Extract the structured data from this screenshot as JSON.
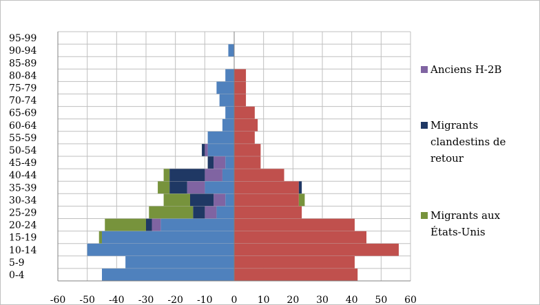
{
  "chart_data": {
    "type": "bar",
    "orientation": "horizontal",
    "stacked": true,
    "title": "",
    "xlabel": "",
    "ylabel": "",
    "xlim": [
      -60,
      60
    ],
    "x_ticks": [
      -60,
      -50,
      -40,
      -30,
      -20,
      -10,
      0,
      10,
      20,
      30,
      40,
      50,
      60
    ],
    "grid": true,
    "legend_position": "right",
    "categories": [
      "0-4",
      "5-9",
      "10-14",
      "15-19",
      "20-24",
      "25-29",
      "30-34",
      "35-39",
      "40-44",
      "45-49",
      "50-54",
      "55-59",
      "60-64",
      "65-69",
      "70-74",
      "75-79",
      "80-84",
      "85-89",
      "90-94",
      "95-99"
    ],
    "series": [
      {
        "color": "#4f81bd",
        "values": [
          -45,
          -37,
          -50,
          -45,
          -25,
          -6,
          -3,
          -10,
          -4,
          -3,
          -9,
          -9,
          -4,
          -3,
          -5,
          -6,
          -3,
          0,
          -2,
          0
        ]
      },
      {
        "color": "#c0504d",
        "values": [
          42,
          41,
          56,
          45,
          41,
          23,
          22,
          22,
          17,
          9,
          9,
          7,
          8,
          7,
          4,
          4,
          4,
          0,
          0,
          0
        ]
      },
      {
        "name": "Anciens H-2B",
        "color": "#8064a2",
        "values": [
          0,
          0,
          0,
          0,
          -3,
          -4,
          -4,
          -6,
          -6,
          -4,
          -1,
          0,
          0,
          0,
          0,
          0,
          0,
          0,
          0,
          0
        ]
      },
      {
        "name": "Migrants clandestins de retour",
        "color": "#1f3864",
        "values": [
          0,
          0,
          0,
          0,
          -2,
          -4,
          -8,
          -6,
          -12,
          -2,
          -1,
          0,
          0,
          0,
          0,
          0,
          0,
          0,
          0,
          0
        ]
      },
      {
        "name": "Migrants aux États-Unis",
        "color": "#77933c",
        "values": [
          0,
          0,
          0,
          -1,
          -14,
          -15,
          -9,
          -4,
          -2,
          0,
          0,
          0,
          0,
          0,
          0,
          0,
          0,
          0,
          0,
          0
        ]
      },
      {
        "color": "#1f3864",
        "values": [
          0,
          0,
          0,
          0,
          0,
          0,
          0,
          1,
          0,
          0,
          0,
          0,
          0,
          0,
          0,
          0,
          0,
          0,
          0,
          0
        ]
      },
      {
        "color": "#77933c",
        "values": [
          0,
          0,
          0,
          0,
          0,
          0,
          2,
          0,
          0,
          0,
          0,
          0,
          0,
          0,
          0,
          0,
          0,
          0,
          0,
          0
        ]
      }
    ]
  },
  "legend": [
    {
      "lines": [
        "Anciens H-2B"
      ],
      "color": "#8064a2"
    },
    {
      "lines": [
        "Migrants",
        "clandestins de",
        "retour"
      ],
      "color": "#1f3864"
    },
    {
      "lines": [
        "Migrants aux",
        "États-Unis"
      ],
      "color": "#77933c"
    }
  ]
}
